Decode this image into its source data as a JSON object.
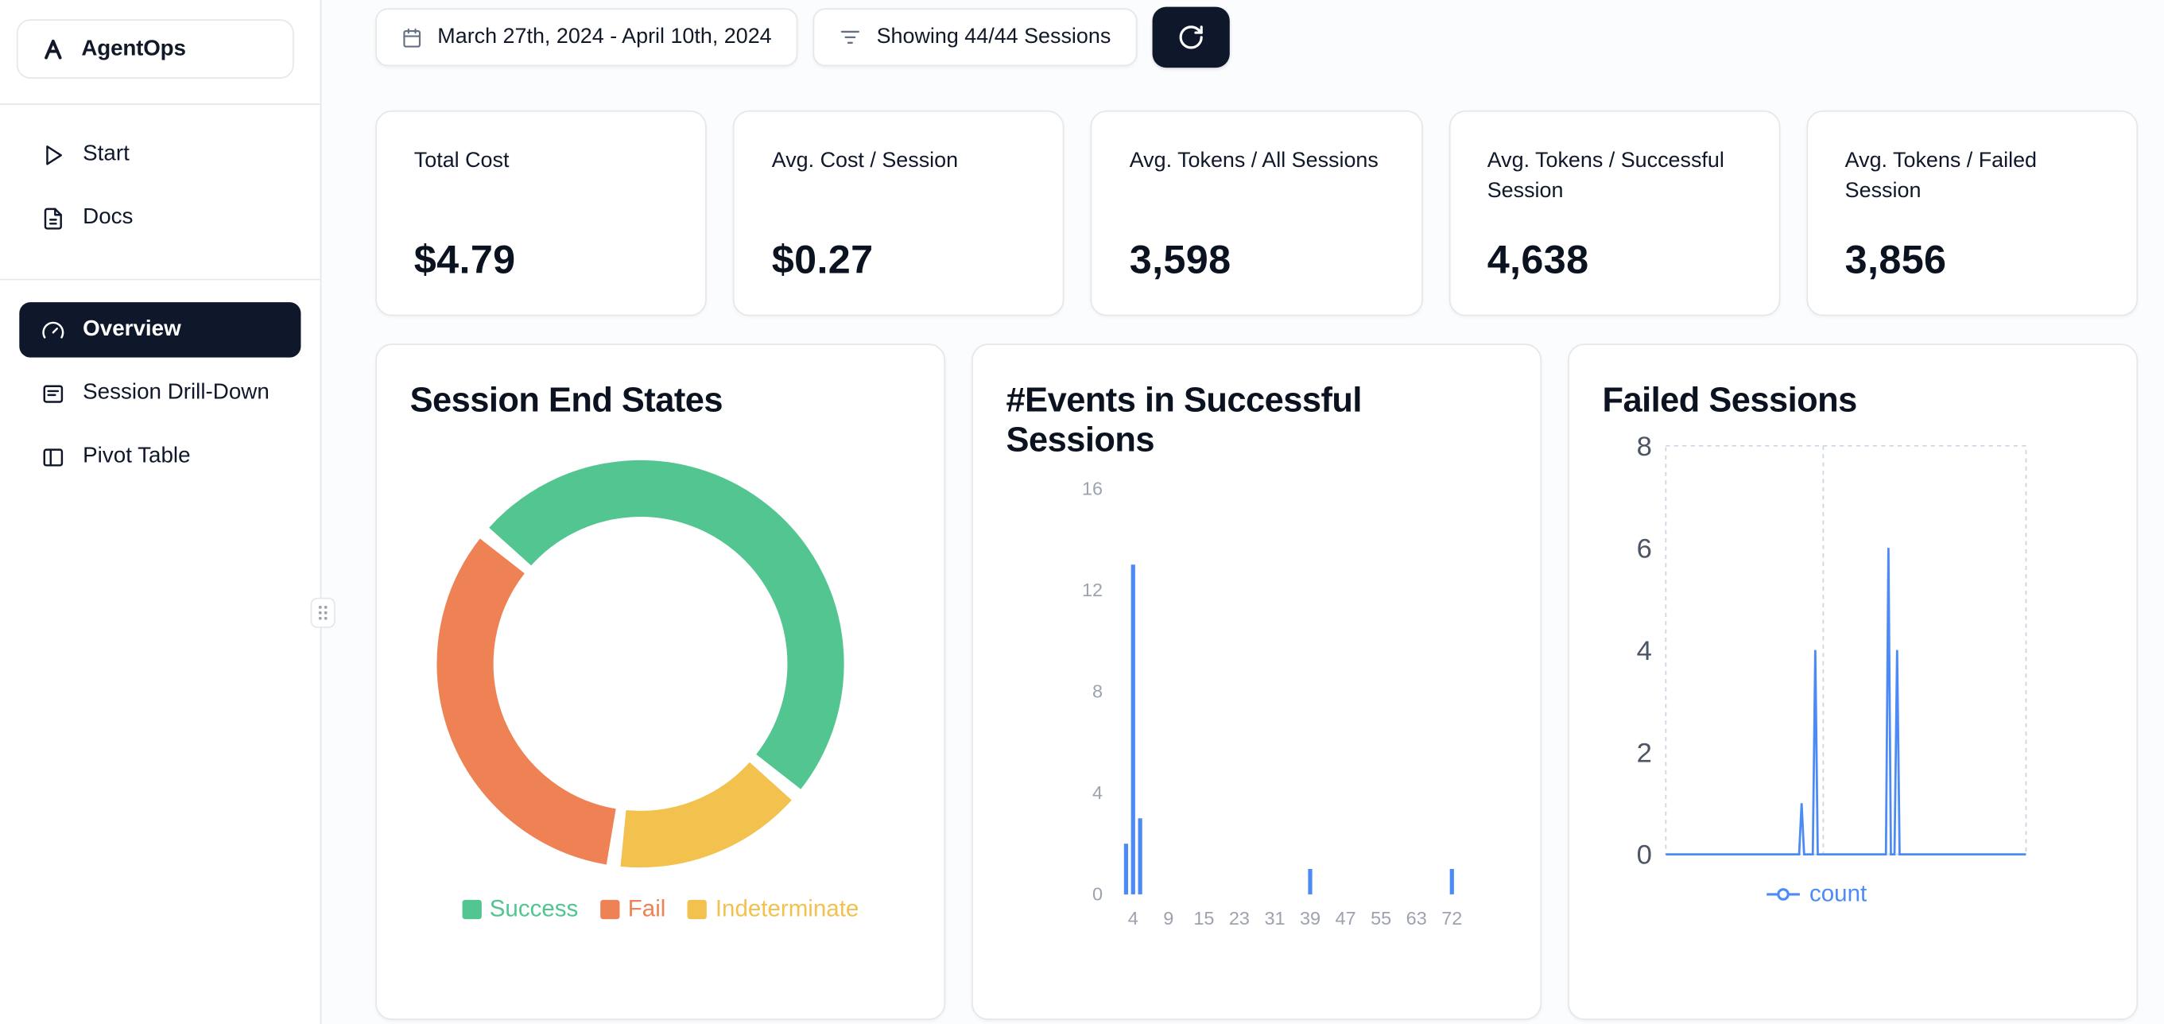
{
  "app": {
    "name": "AgentOps"
  },
  "sidebar": {
    "nav_top": [
      {
        "label": "Start",
        "icon": "play-icon"
      },
      {
        "label": "Docs",
        "icon": "docs-icon"
      }
    ],
    "nav_main": [
      {
        "label": "Overview",
        "icon": "gauge-icon",
        "active": true
      },
      {
        "label": "Session Drill-Down",
        "icon": "session-drilldown-icon",
        "active": false
      },
      {
        "label": "Pivot Table",
        "icon": "pivot-table-icon",
        "active": false
      }
    ]
  },
  "topbar": {
    "date_range": "March 27th, 2024 - April 10th, 2024",
    "filter_label": "Showing 44/44 Sessions"
  },
  "stats": [
    {
      "label": "Total Cost",
      "value": "$4.79"
    },
    {
      "label": "Avg. Cost / Session",
      "value": "$0.27"
    },
    {
      "label": "Avg. Tokens / All Sessions",
      "value": "3,598"
    },
    {
      "label": "Avg. Tokens / Successful Session",
      "value": "4,638"
    },
    {
      "label": "Avg. Tokens / Failed Session",
      "value": "3,856"
    }
  ],
  "colors": {
    "accent_navy": "#0f172a",
    "chart_blue": "#4c8bf5",
    "success_green": "#52c590",
    "fail_orange": "#ef8254",
    "indeterminate_yellow": "#f2c14e",
    "card_border": "#e5e7eb",
    "axis_gray": "#9ca3af"
  },
  "chart_data": [
    {
      "type": "pie",
      "title": "Session End States",
      "donut": true,
      "rotation_deg": 130,
      "pad_deg": 4,
      "direction": "counterclockwise",
      "legend_position": "bottom",
      "slices": [
        {
          "label": "Success",
          "value": 50,
          "color": "#52c590"
        },
        {
          "label": "Fail",
          "value": 34,
          "color": "#ef8254"
        },
        {
          "label": "Indeterminate",
          "value": 16,
          "color": "#f2c14e"
        }
      ]
    },
    {
      "type": "bar",
      "title": "#Events in Successful Sessions",
      "xticks": [
        4,
        9,
        15,
        23,
        31,
        39,
        47,
        55,
        63,
        72
      ],
      "yticks": [
        0,
        4,
        8,
        12,
        16
      ],
      "ylim": [
        0,
        16
      ],
      "bar_color": "#4c8bf5",
      "bars": [
        {
          "x": 3,
          "count": 2
        },
        {
          "x": 4,
          "count": 13
        },
        {
          "x": 5,
          "count": 3
        },
        {
          "x": 39,
          "count": 1
        },
        {
          "x": 72,
          "count": 1
        }
      ]
    },
    {
      "type": "line",
      "title": "Failed Sessions",
      "yticks": [
        0,
        2,
        4,
        6,
        8
      ],
      "ylim": [
        0,
        8
      ],
      "grid": "dashed",
      "grid_v_fracs": [
        0.437
      ],
      "legend": [
        "count"
      ],
      "series": [
        {
          "name": "count",
          "color": "#4c8bf5",
          "spikes": [
            {
              "pos": 0.377,
              "value": 1
            },
            {
              "pos": 0.415,
              "value": 4
            },
            {
              "pos": 0.618,
              "value": 6
            },
            {
              "pos": 0.642,
              "value": 4
            }
          ]
        }
      ]
    }
  ]
}
